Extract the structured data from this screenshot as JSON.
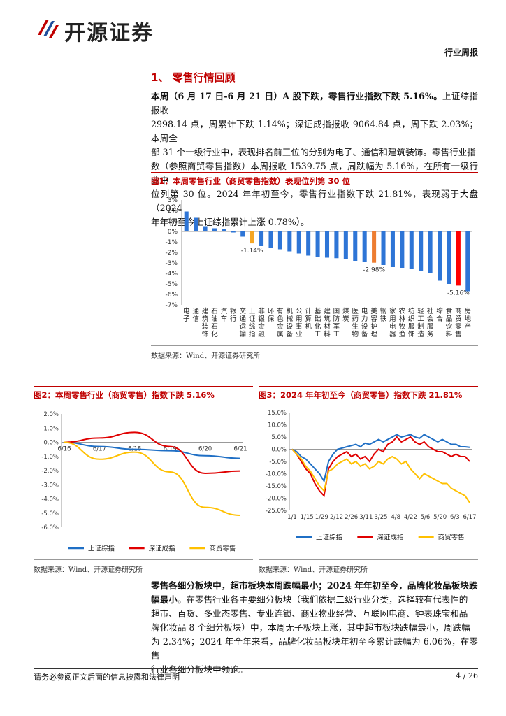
{
  "header": {
    "brand": "开源证券",
    "report_type": "行业周报"
  },
  "section": {
    "title": "1、 零售行情回顾"
  },
  "para1": {
    "lead": "本周（6 月 17 日-6 月 21 日）A 股下跌，零售行业指数下跌 5.16%。",
    "line1_rest": "上证综指报收",
    "line2": "2998.14 点，周累计下跌 1.14%；深证成指报收 9064.84 点，周下跌 2.03%；本周全",
    "line3": "部 31 个一级行业中，表现排名前三位的分别为电子、通信和建筑装饰。零售行业指",
    "line4": "数（参照商贸零售指数）本周报收 1539.75 点，周跌幅为 5.16%，在所有一级行业中",
    "line5": "位列第 30 位。2024 年年初至今，零售行业指数下跌 21.81%，表现弱于大盘（2024",
    "line6": "年年初至今上证综指累计上涨 0.78%）。"
  },
  "fig1": {
    "title": "图1：本周零售行业（商贸零售指数）表现位列第 30 位",
    "source": "数据来源：Wind、开源证券研究所"
  },
  "fig2": {
    "title": "图2：本周零售行业（商贸零售）指数下跌 5.16%",
    "source": "数据来源：Wind、开源证券研究所"
  },
  "fig3": {
    "title": "图3：2024 年年初至今（商贸零售）指数下跌 21.81%",
    "source": "数据来源：Wind、开源证券研究所"
  },
  "para2": {
    "lead1": "零售各细分板块中，超市板块本周跌幅最小；2024 年年初至今，品牌化妆品板块跌",
    "lead2": "幅最小。",
    "line2_rest": "在零售行业各主要细分板块（我们依据二级行业分类，选择较有代表性的",
    "line3": "超市、百货、多业态零售、专业连锁、商业物业经营、互联网电商、钟表珠宝和品",
    "line4": "牌化妆品 8 个细分板块）中，本周无子板块上涨，其中超市板块跌幅最小，周跌幅",
    "line5": "为 2.34%；2024 年全年来看，品牌化妆品板块年初至今累计跌幅为 6.06%，在零售",
    "line6": "行业各细分板块中领跑。"
  },
  "footer": {
    "disclaimer": "请务必参阅正文后面的信息披露和法律声明",
    "page": "4 / 26"
  },
  "chart_data": [
    {
      "type": "bar",
      "categories": [
        "电子",
        "通信",
        "建筑装饰",
        "石油石化",
        "汽车",
        "银行",
        "交通运输",
        "上证综指",
        "非银金融",
        "环保",
        "有色金属",
        "机械设备",
        "公用事业",
        "计算机",
        "基础化工",
        "建筑材料",
        "国防军工",
        "煤炭",
        "医药生物",
        "电力设备",
        "美容护理",
        "钢铁",
        "家用电器",
        "农林牧渔",
        "纺织服饰",
        "轻工制造",
        "社会服务",
        "综合",
        "食品饮料",
        "商贸零售",
        "房地产"
      ],
      "values": [
        1.9,
        1.3,
        0.5,
        0.3,
        0.2,
        -0.1,
        -0.5,
        -1.14,
        -1.4,
        -1.6,
        -1.7,
        -1.9,
        -2.1,
        -2.3,
        -2.4,
        -2.5,
        -2.55,
        -2.6,
        -2.8,
        -2.9,
        -2.98,
        -3.2,
        -3.4,
        -3.5,
        -3.6,
        -3.8,
        -4.0,
        -4.7,
        -5.0,
        -5.16,
        -5.7
      ],
      "highlight": {
        "上证综指": "#f5a623",
        "美容护理": "#ed7d31",
        "商贸零售": "#ff0000"
      },
      "labels": {
        "上证综指": "-1.14%",
        "美容护理": "-2.98%",
        "商贸零售": "-5.16%"
      },
      "yticks": [
        "3%",
        "2%",
        "1%",
        "0%",
        "-1%",
        "-2%",
        "-3%",
        "-4%",
        "-5%",
        "-6%",
        "-7%"
      ],
      "ylim": [
        -7,
        3
      ],
      "bar_color": "#2e75d6"
    },
    {
      "type": "line",
      "x": [
        "6/16",
        "6/17",
        "6/18",
        "6/19",
        "6/20",
        "6/21"
      ],
      "yticks": [
        "2.0%",
        "1.0%",
        "0.0%",
        "-1.0%",
        "-2.0%",
        "-3.0%",
        "-4.0%",
        "-5.0%",
        "-6.0%"
      ],
      "ylim": [
        -6,
        2
      ],
      "series": [
        {
          "name": "上证综指",
          "color": "#1f6fc5",
          "values": [
            0,
            -0.3,
            -0.5,
            -0.6,
            -0.95,
            -1.14
          ]
        },
        {
          "name": "深证成指",
          "color": "#e00000",
          "values": [
            0,
            0.3,
            0.7,
            -0.3,
            -2.2,
            -2.03
          ]
        },
        {
          "name": "商贸零售",
          "color": "#ffc000",
          "values": [
            0,
            -1.2,
            -0.7,
            -2.1,
            -4.6,
            -5.16
          ]
        }
      ]
    },
    {
      "type": "line",
      "xticks": [
        "1/1",
        "1/15",
        "1/29",
        "2/12",
        "2/26",
        "3/11",
        "3/25",
        "4/8",
        "4/22",
        "5/6",
        "5/20",
        "6/3",
        "6/17"
      ],
      "yticks": [
        "15.0%",
        "10.0%",
        "5.0%",
        "0.0%",
        "-5.0%",
        "-10.0%",
        "-15.0%",
        "-20.0%",
        "-25.0%"
      ],
      "ylim": [
        -25,
        15
      ],
      "series": [
        {
          "name": "上证综指",
          "color": "#1f6fc5",
          "values": [
            0,
            -1,
            -3,
            -4,
            -6,
            -8,
            -10,
            -13,
            -5,
            -2,
            0,
            0.5,
            1,
            1.5,
            2,
            1,
            2.5,
            2,
            3,
            4,
            3,
            4,
            5,
            6,
            5,
            5.5,
            6,
            5,
            4.5,
            6,
            5,
            4,
            3,
            4,
            3,
            2,
            2,
            1,
            1,
            0.78
          ]
        },
        {
          "name": "深证成指",
          "color": "#e00000",
          "values": [
            0,
            -2,
            -5,
            -8,
            -10,
            -14,
            -17,
            -19,
            -8,
            -5,
            -3,
            -2,
            -1,
            -3,
            -2,
            -4,
            -3,
            -5,
            -2,
            0,
            -1,
            2,
            3,
            5,
            3,
            4,
            5,
            3,
            2,
            3,
            1,
            0,
            -1,
            -1,
            -2,
            -3,
            -2,
            -3,
            -3,
            -5
          ]
        },
        {
          "name": "商贸零售",
          "color": "#ffc000",
          "values": [
            0,
            -2,
            -4,
            -7,
            -9,
            -12,
            -15,
            -17,
            -9,
            -8,
            -6,
            -5,
            -4,
            -6,
            -5,
            -7,
            -6,
            -8,
            -7,
            -5,
            -6,
            -4,
            -3,
            -4,
            -6,
            -5,
            -8,
            -10,
            -12,
            -10,
            -11,
            -12,
            -13,
            -14,
            -14,
            -16,
            -17,
            -18,
            -19,
            -21.81
          ]
        }
      ]
    }
  ]
}
